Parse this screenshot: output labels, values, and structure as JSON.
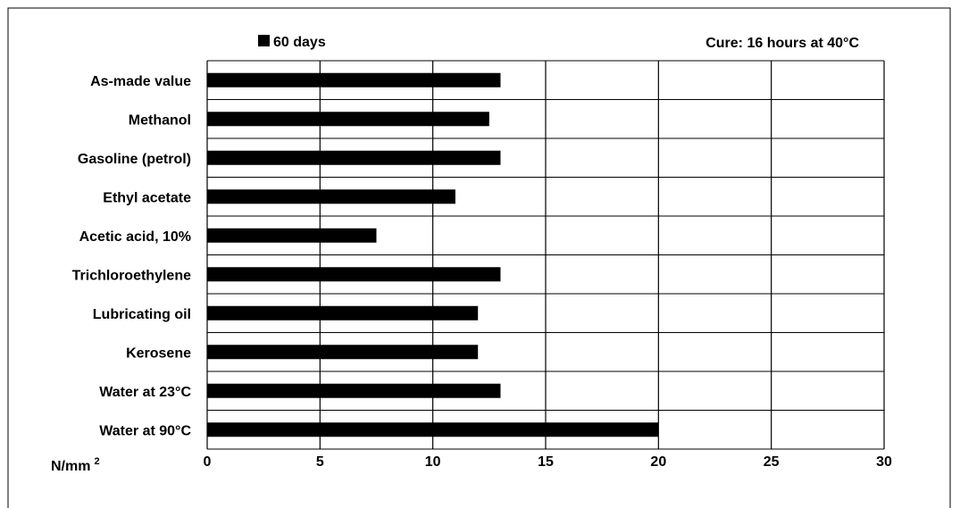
{
  "chart_data": {
    "type": "bar",
    "orientation": "horizontal",
    "categories": [
      "As-made value",
      "Methanol",
      "Gasoline (petrol)",
      "Ethyl acetate",
      "Acetic acid, 10%",
      "Trichloroethylene",
      "Lubricating oil",
      "Kerosene",
      "Water at 23°C",
      "Water at 90°C"
    ],
    "series": [
      {
        "name": "60 days",
        "values": [
          13,
          12.5,
          13,
          11,
          7.5,
          13,
          12,
          12,
          13,
          20
        ],
        "color": "#000000"
      }
    ],
    "xlim": [
      0,
      30
    ],
    "xticks": [
      0,
      5,
      10,
      15,
      20,
      25,
      30
    ],
    "x_tick_labels": [
      "0",
      "5",
      "10",
      "15",
      "20",
      "25",
      "30"
    ],
    "unit_label": "N/mm",
    "unit_superscript": "2",
    "annotation": "Cure: 16 hours at 40°C",
    "legend_position": "top-left",
    "grid": "vertical"
  }
}
